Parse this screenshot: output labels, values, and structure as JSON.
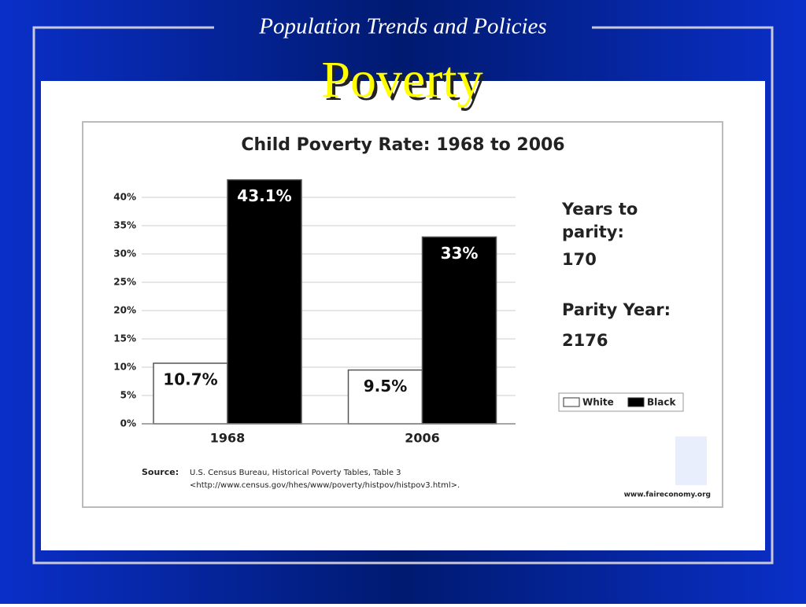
{
  "slide": {
    "header": "Population Trends and Policies",
    "title": "Poverty"
  },
  "chart_data": {
    "type": "bar",
    "title": "Child Poverty Rate: 1968 to 2006",
    "categories": [
      "1968",
      "2006"
    ],
    "series": [
      {
        "name": "White",
        "color": "#ffffff",
        "values": [
          10.7,
          9.5
        ],
        "value_labels": [
          "10.7%",
          "9.5%"
        ]
      },
      {
        "name": "Black",
        "color": "#000000",
        "values": [
          43.1,
          33
        ],
        "value_labels": [
          "43.1%",
          "33%"
        ]
      }
    ],
    "ylim": [
      0,
      40
    ],
    "yticks": [
      {
        "value": 0,
        "label": "0%"
      },
      {
        "value": 5,
        "label": "5%"
      },
      {
        "value": 10,
        "label": "10%"
      },
      {
        "value": 15,
        "label": "15%"
      },
      {
        "value": 20,
        "label": "20%"
      },
      {
        "value": 25,
        "label": "25%"
      },
      {
        "value": 30,
        "label": "30%"
      },
      {
        "value": 35,
        "label": "35%"
      },
      {
        "value": 40,
        "label": "40%"
      }
    ],
    "grid": true,
    "legend": "right",
    "annotations": [
      "Years to",
      "parity:",
      "170",
      "Parity Year:",
      "2176"
    ],
    "source": {
      "label": "Source:",
      "lines": [
        "U.S. Census Bureau, Historical Poverty Tables, Table 3",
        "<http://www.census.gov/hhes/www/poverty/histpov/histpov3.html>."
      ]
    },
    "credit": "www.faireconomy.org"
  }
}
